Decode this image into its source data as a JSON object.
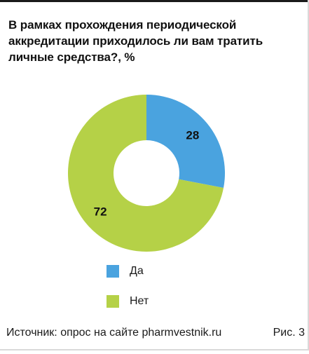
{
  "chart_data": {
    "type": "pie",
    "donut": true,
    "title": "В рамках прохождения периодической аккредитации приходилось ли вам тратить личные средства?, %",
    "slices": [
      {
        "label": "Да",
        "value": 28,
        "color": "#4aa3df"
      },
      {
        "label": "Нет",
        "value": 72,
        "color": "#b5d147"
      }
    ],
    "legend_placement": "bottom-center"
  },
  "footer": {
    "source": "Источник: опрос на сайте pharmvestnik.ru",
    "figure_label": "Рис. 3"
  }
}
